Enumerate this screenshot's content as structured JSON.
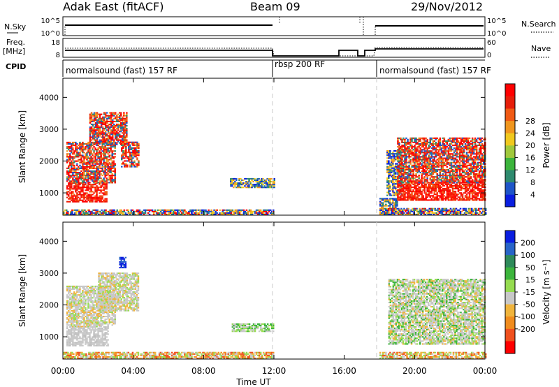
{
  "header": {
    "station": "Adak East (fitACF)",
    "beam": "Beam 09",
    "date": "29/Nov/2012"
  },
  "panels": {
    "nsky": {
      "label": "N.Sky",
      "ticks": [
        "10^5",
        "10^0"
      ]
    },
    "nsearch": {
      "label": "N.Search",
      "ticks": [
        "10^5",
        "10^0"
      ]
    },
    "freq": {
      "label_line1": "Freq.",
      "label_line2": "[MHz]",
      "ticks": [
        "18",
        "8"
      ]
    },
    "nave": {
      "label": "Nave",
      "ticks": [
        "60",
        "0"
      ]
    },
    "cpid": {
      "label": "CPID",
      "segments": [
        {
          "text": "normalsound (fast) 157 RF",
          "start_hour": 0,
          "end_hour": 12
        },
        {
          "text": "rbsp 200 RF",
          "start_hour": 12,
          "end_hour": 18
        },
        {
          "text": "normalsound (fast) 157 RF",
          "start_hour": 18,
          "end_hour": 24
        }
      ]
    }
  },
  "chart_data": [
    {
      "type": "heatmap",
      "name": "power",
      "ylabel": "Slant Range [km]",
      "ylim": [
        300,
        4600
      ],
      "yticks": [
        1000,
        2000,
        3000,
        4000
      ],
      "xlim_hours": [
        0,
        24
      ],
      "colorbar": {
        "label": "Power [dB]",
        "ticks": [
          "4",
          "8",
          "12",
          "16",
          "20",
          "24",
          "28"
        ],
        "colors": [
          "#0a1ee0",
          "#1e55c8",
          "#2e8a6e",
          "#3cb43c",
          "#a0c83c",
          "#f0c81e",
          "#f0961e",
          "#f05a14",
          "#e61e0a",
          "#ff0000"
        ]
      },
      "regions": [
        {
          "t0": 0.2,
          "t1": 2.5,
          "r0": 700,
          "r1": 1300,
          "level": "high"
        },
        {
          "t0": 0.2,
          "t1": 3.0,
          "r0": 1300,
          "r1": 2600,
          "level": "mid"
        },
        {
          "t0": 1.5,
          "t1": 3.6,
          "r0": 2500,
          "r1": 3500,
          "level": "mid"
        },
        {
          "t0": 3.3,
          "t1": 4.3,
          "r0": 1800,
          "r1": 2600,
          "level": "mid"
        },
        {
          "t0": 9.5,
          "t1": 12.0,
          "r0": 1150,
          "r1": 1450,
          "level": "low"
        },
        {
          "t0": 0.0,
          "t1": 12.0,
          "r0": 300,
          "r1": 480,
          "level": "mix"
        },
        {
          "t0": 18.0,
          "t1": 19.0,
          "r0": 300,
          "r1": 800,
          "level": "low"
        },
        {
          "t0": 18.4,
          "t1": 19.2,
          "r0": 900,
          "r1": 2300,
          "level": "low"
        },
        {
          "t0": 19.0,
          "t1": 24.0,
          "r0": 750,
          "r1": 1300,
          "level": "high"
        },
        {
          "t0": 19.0,
          "t1": 24.0,
          "r0": 1300,
          "r1": 2700,
          "level": "mid"
        },
        {
          "t0": 18.0,
          "t1": 24.0,
          "r0": 300,
          "r1": 500,
          "level": "mix"
        }
      ]
    },
    {
      "type": "heatmap",
      "name": "velocity",
      "ylabel": "Slant Range [km]",
      "ylim": [
        300,
        4600
      ],
      "yticks": [
        1000,
        2000,
        3000,
        4000
      ],
      "xlim_hours": [
        0,
        24
      ],
      "colorbar": {
        "label": "Velocity [m s⁻¹]",
        "ticks": [
          "200",
          "100",
          "50",
          "15",
          "-15",
          "-50",
          "-100",
          "-200"
        ],
        "colors": [
          "#0a1ee0",
          "#2864c8",
          "#2e8a5a",
          "#3cb43c",
          "#96dc50",
          "#c8c8c8",
          "#f0b43c",
          "#f08c1e",
          "#f0501e",
          "#ff0000"
        ]
      },
      "regions": [
        {
          "t0": 0.2,
          "t1": 2.6,
          "r0": 700,
          "r1": 1300,
          "level": "gray"
        },
        {
          "t0": 0.2,
          "t1": 3.0,
          "r0": 1300,
          "r1": 2600,
          "level": "graymix"
        },
        {
          "t0": 2.0,
          "t1": 4.3,
          "r0": 1800,
          "r1": 3000,
          "level": "graymix"
        },
        {
          "t0": 3.2,
          "t1": 3.6,
          "r0": 3150,
          "r1": 3500,
          "level": "blue"
        },
        {
          "t0": 9.6,
          "t1": 12.0,
          "r0": 1150,
          "r1": 1400,
          "level": "green"
        },
        {
          "t0": 0.0,
          "t1": 12.0,
          "r0": 300,
          "r1": 500,
          "level": "orange"
        },
        {
          "t0": 18.5,
          "t1": 24.0,
          "r0": 750,
          "r1": 2800,
          "level": "graygreen"
        },
        {
          "t0": 18.0,
          "t1": 24.0,
          "r0": 300,
          "r1": 500,
          "level": "orange"
        }
      ]
    }
  ],
  "xaxis": {
    "label": "Time UT",
    "ticks": [
      "00:00",
      "04:00",
      "08:00",
      "12:00",
      "16:00",
      "20:00",
      "00:00"
    ]
  }
}
